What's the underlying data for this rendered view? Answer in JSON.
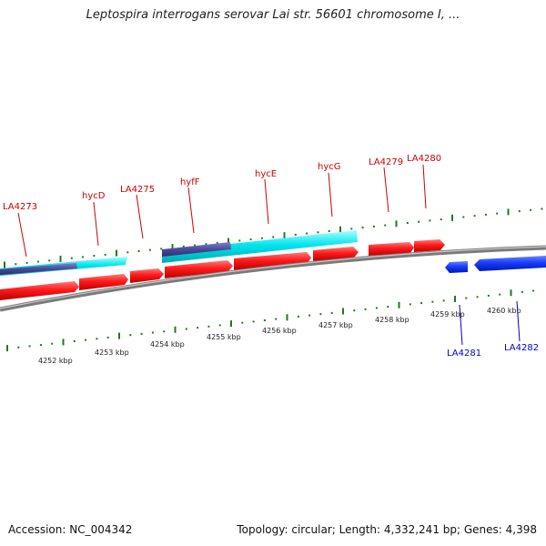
{
  "title": "Leptospira interrogans serovar Lai str. 56601 chromosome I, ...",
  "footer": {
    "accession": "Accession: NC_004342",
    "summary": "Topology: circular; Length: 4,332,241 bp; Genes: 4,398"
  },
  "colors": {
    "forward_label": "#cc0000",
    "reverse_label": "#0000cc",
    "gene_red": "#ff1a1a",
    "gene_cyan": "#00e5ee",
    "gene_blue": "#1a3cff",
    "gene_purple": "#4a4a9a",
    "backbone": "#8a8a8a",
    "tick": "#1e7a1e"
  },
  "forward_genes": [
    {
      "name": "LA4273"
    },
    {
      "name": "hycD"
    },
    {
      "name": "LA4275"
    },
    {
      "name": "hyfF"
    },
    {
      "name": "hycE"
    },
    {
      "name": "hycG"
    },
    {
      "name": "LA4279"
    },
    {
      "name": "LA4280"
    }
  ],
  "reverse_genes": [
    {
      "name": "LA4281"
    },
    {
      "name": "LA4282"
    }
  ],
  "scale_labels": [
    "4252 kbp",
    "4253 kbp",
    "4254 kbp",
    "4255 kbp",
    "4256 kbp",
    "4257 kbp",
    "4258 kbp",
    "4259 kbp",
    "4260 kbp"
  ]
}
